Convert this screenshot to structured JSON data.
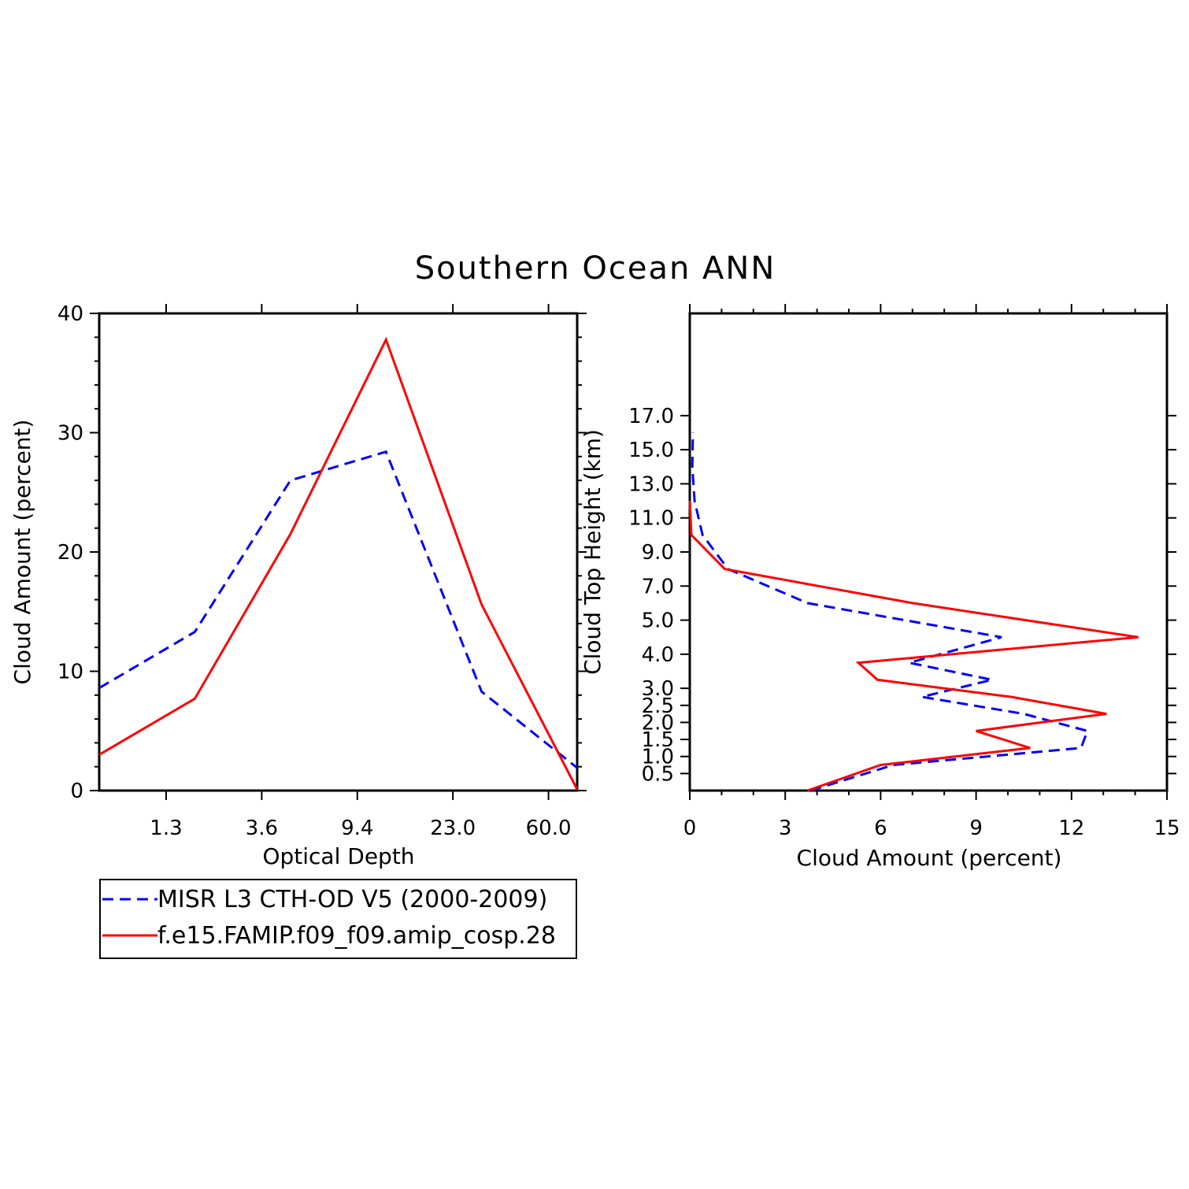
{
  "title": "Southern Ocean ANN",
  "chart_data": [
    {
      "type": "line",
      "xlabel": "Optical Depth",
      "ylabel": "Cloud Amount (percent)",
      "xticklabels": [
        "1.3",
        "3.6",
        "9.4",
        "23.0",
        "60.0"
      ],
      "ylim": [
        0,
        40
      ],
      "yticks": [
        "0",
        "10",
        "20",
        "30",
        "40"
      ],
      "x": [
        0.3,
        1.3,
        2.3,
        3.3,
        4.3,
        5.3
      ],
      "series": [
        {
          "name": "MISR L3 CTH-OD V5 (2000-2009)",
          "color": "#0000ff",
          "dash": "dashed",
          "values": [
            8.6,
            13.3,
            26.0,
            28.4,
            8.3,
            1.9
          ]
        },
        {
          "name": "f.e15.FAMIP.f09_f09.amip_cosp.28",
          "color": "#ff0000",
          "dash": "solid",
          "values": [
            3.0,
            7.7,
            21.5,
            37.8,
            15.6,
            0.1
          ]
        }
      ]
    },
    {
      "type": "line",
      "xlabel": "Cloud Amount (percent)",
      "ylabel": "Cloud Top Height (km)",
      "xlim": [
        0,
        15
      ],
      "xticks": [
        "0",
        "3",
        "6",
        "9",
        "12",
        "15"
      ],
      "yticklabels": [
        "0.5",
        "1.0",
        "1.5",
        "2.0",
        "2.5",
        "3.0",
        "4.0",
        "5.0",
        "7.0",
        "9.0",
        "11.0",
        "13.0",
        "15.0",
        "17.0"
      ],
      "series": [
        {
          "name": "MISR L3 CTH-OD V5 (2000-2009)",
          "color": "#0000ff",
          "dash": "dashed",
          "y": [
            0.0,
            0.75,
            1.25,
            1.75,
            2.25,
            2.75,
            3.5,
            4.5,
            6.0,
            8.0,
            10.0,
            12.0,
            14.0,
            16.0,
            18.0
          ],
          "values": [
            3.8,
            6.4,
            12.3,
            12.5,
            10.5,
            7.3,
            9.5,
            6.9,
            9.8,
            3.7,
            1.2,
            0.4,
            0.15,
            0.08,
            0.1
          ]
        },
        {
          "name": "f.e15.FAMIP.f09_f09.amip_cosp.28",
          "color": "#ff0000",
          "dash": "solid",
          "y": [
            0.0,
            0.75,
            1.25,
            1.75,
            2.25,
            2.75,
            3.5,
            4.5,
            6.0,
            8.0,
            10.0,
            12.0,
            14.0
          ],
          "values": [
            3.7,
            6.0,
            10.7,
            9.0,
            13.1,
            10.1,
            5.9,
            5.3,
            14.1,
            7.0,
            1.1,
            0.05,
            0.0
          ]
        }
      ]
    }
  ],
  "legend": {
    "entries": [
      {
        "label": "MISR L3 CTH-OD V5 (2000-2009)",
        "color": "#0000ff",
        "dash": "dashed"
      },
      {
        "label": "f.e15.FAMIP.f09_f09.amip_cosp.28",
        "color": "#ff0000",
        "dash": "solid"
      }
    ]
  }
}
